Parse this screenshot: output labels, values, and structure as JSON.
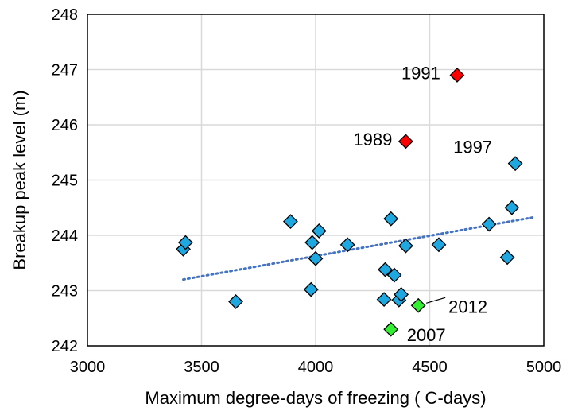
{
  "chart_data": {
    "type": "scatter",
    "title": "",
    "xlabel": "Maximum degree-days of freezing ( C-days)",
    "ylabel": "Breakup peak level (m)",
    "xlim": [
      3000,
      5000
    ],
    "ylim": [
      242,
      248
    ],
    "xticks": [
      3000,
      3500,
      4000,
      4500,
      5000
    ],
    "yticks": [
      242,
      243,
      244,
      245,
      246,
      247,
      248
    ],
    "grid": true,
    "legend": "none",
    "colors": {
      "default": "#1fa8e0",
      "highlight_red": "#ff0000",
      "highlight_green": "#33ee33",
      "trendline": "#4472c4"
    },
    "series": [
      {
        "points": [
          {
            "x": 3420,
            "y": 243.75,
            "color": "#1fa8e0"
          },
          {
            "x": 3430,
            "y": 243.87,
            "color": "#1fa8e0"
          },
          {
            "x": 3650,
            "y": 242.8,
            "color": "#1fa8e0"
          },
          {
            "x": 3890,
            "y": 244.25,
            "color": "#1fa8e0"
          },
          {
            "x": 3980,
            "y": 243.02,
            "color": "#1fa8e0"
          },
          {
            "x": 3985,
            "y": 243.87,
            "color": "#1fa8e0"
          },
          {
            "x": 4000,
            "y": 243.58,
            "color": "#1fa8e0"
          },
          {
            "x": 4015,
            "y": 244.08,
            "color": "#1fa8e0"
          },
          {
            "x": 4140,
            "y": 243.83,
            "color": "#1fa8e0"
          },
          {
            "x": 4300,
            "y": 242.84,
            "color": "#1fa8e0"
          },
          {
            "x": 4305,
            "y": 243.38,
            "color": "#1fa8e0"
          },
          {
            "x": 4330,
            "y": 244.3,
            "color": "#1fa8e0"
          },
          {
            "x": 4345,
            "y": 243.28,
            "color": "#1fa8e0"
          },
          {
            "x": 4365,
            "y": 242.83,
            "color": "#1fa8e0"
          },
          {
            "x": 4375,
            "y": 242.93,
            "color": "#1fa8e0"
          },
          {
            "x": 4395,
            "y": 243.81,
            "color": "#1fa8e0"
          },
          {
            "x": 4540,
            "y": 243.83,
            "color": "#1fa8e0"
          },
          {
            "x": 4760,
            "y": 244.2,
            "color": "#1fa8e0"
          },
          {
            "x": 4840,
            "y": 243.6,
            "color": "#1fa8e0"
          },
          {
            "x": 4860,
            "y": 244.5,
            "color": "#1fa8e0"
          },
          {
            "x": 4875,
            "y": 245.3,
            "color": "#1fa8e0"
          },
          {
            "x": 4395,
            "y": 245.7,
            "color": "#ff0000"
          },
          {
            "x": 4620,
            "y": 246.9,
            "color": "#ff0000"
          },
          {
            "x": 4450,
            "y": 242.73,
            "color": "#33ee33"
          },
          {
            "x": 4330,
            "y": 242.3,
            "color": "#33ee33"
          }
        ]
      }
    ],
    "trendline": {
      "x": [
        3420,
        4960
      ],
      "y": [
        243.2,
        244.33
      ]
    },
    "annotations": [
      {
        "text": "1991",
        "x": 4620,
        "y": 246.9
      },
      {
        "text": "1989",
        "x": 4395,
        "y": 245.7
      },
      {
        "text": "1997",
        "x": 4875,
        "y": 245.3
      },
      {
        "text": "2012",
        "x": 4450,
        "y": 242.73
      },
      {
        "text": "2007",
        "x": 4330,
        "y": 242.3
      }
    ]
  }
}
